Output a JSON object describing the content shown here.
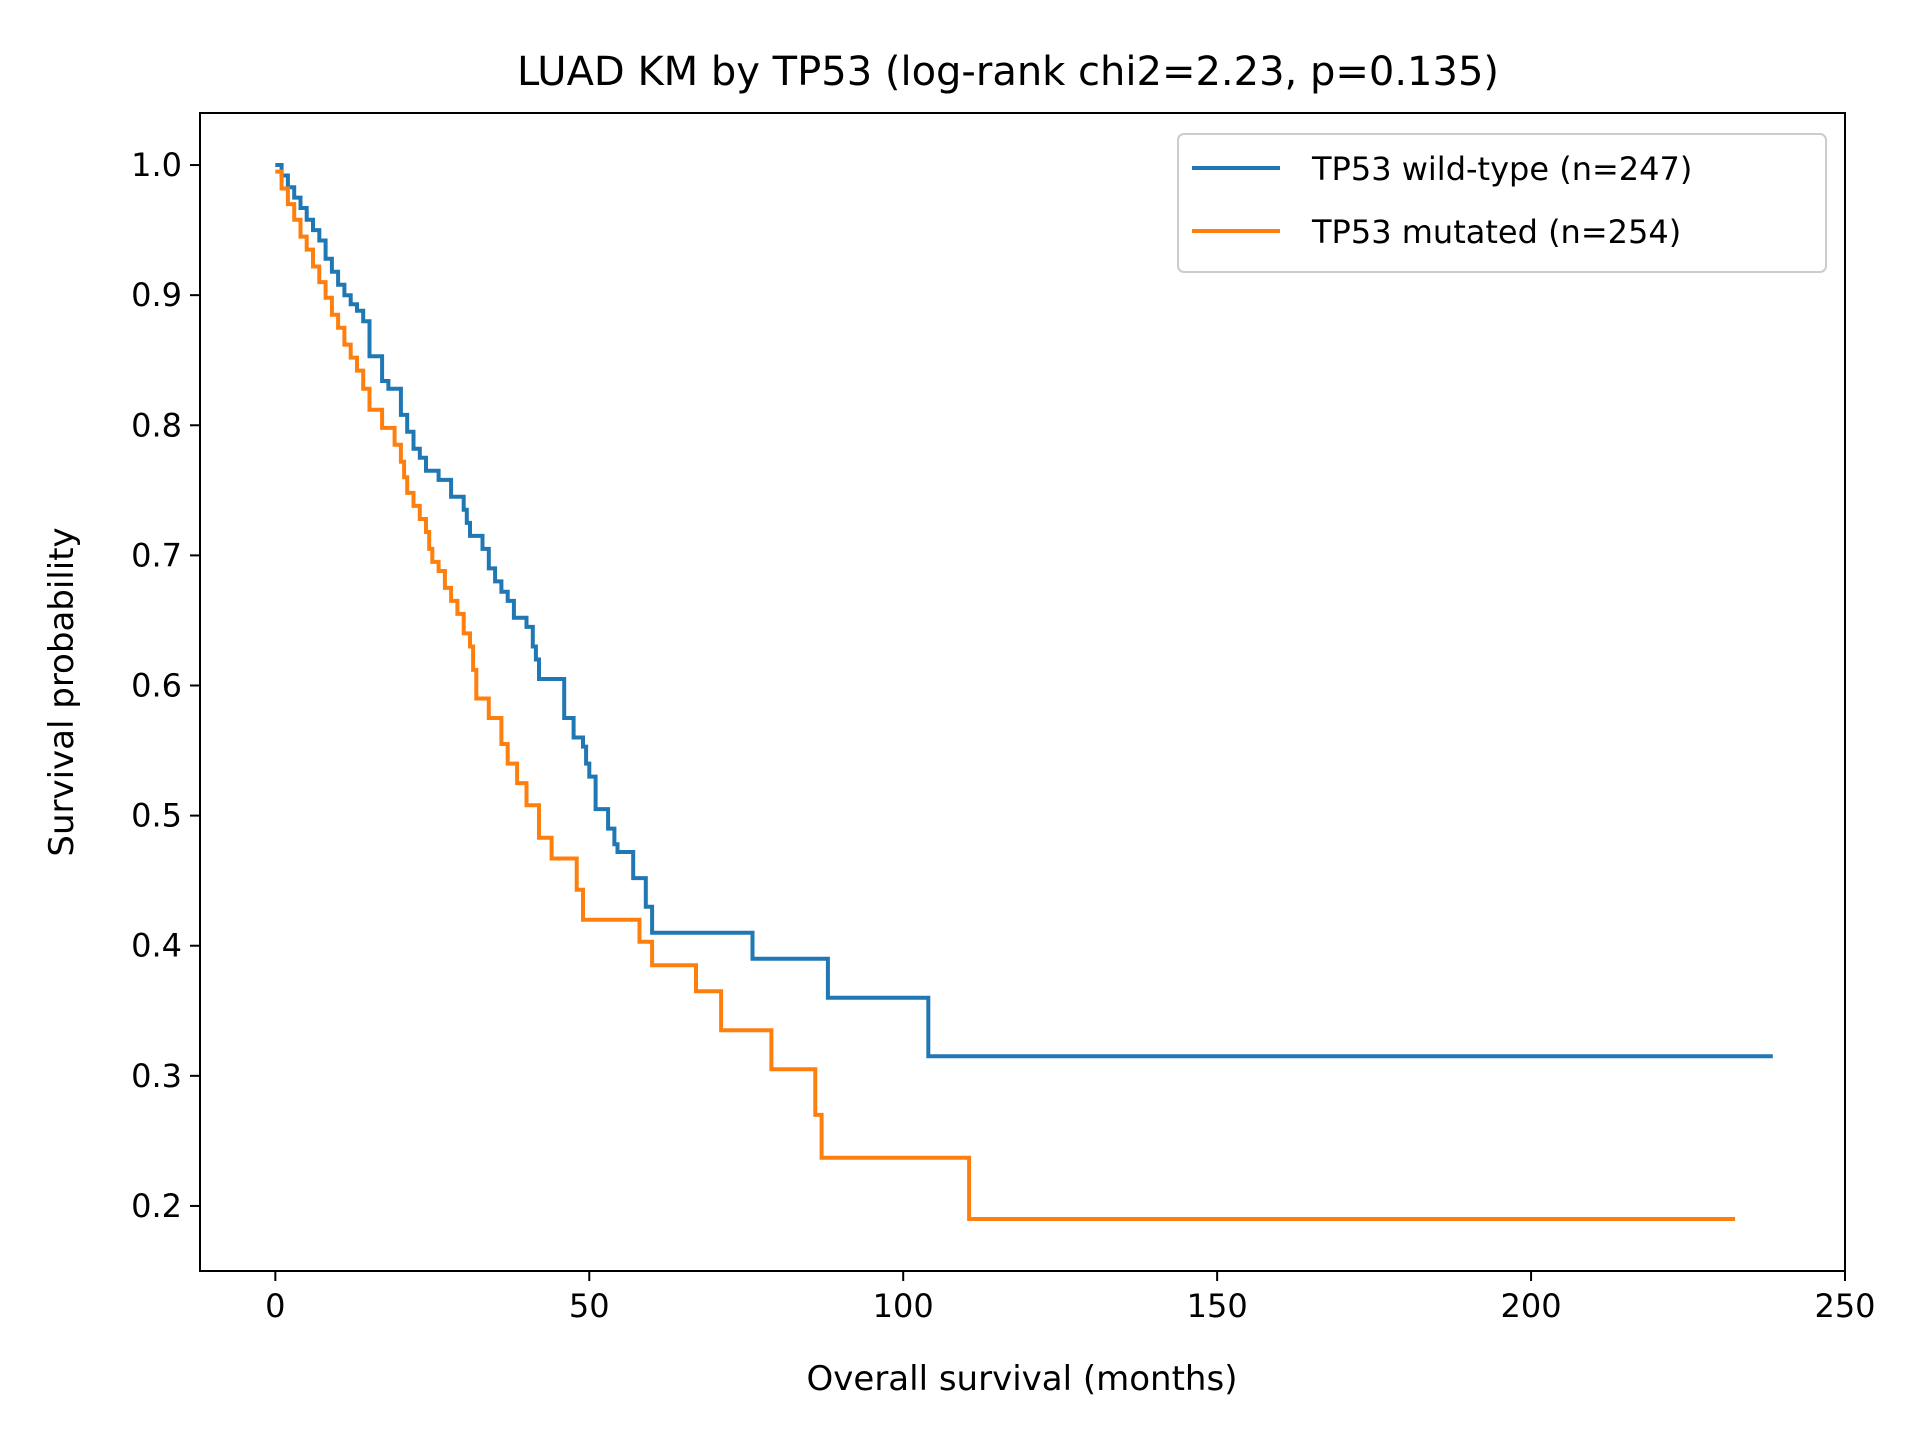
{
  "chart_data": {
    "type": "line",
    "title": "LUAD KM by TP53 (log-rank chi2=2.23, p=0.135)",
    "xlabel": "Overall survival (months)",
    "ylabel": "Survival probability",
    "xlim": [
      -12,
      250
    ],
    "ylim": [
      0.15,
      1.04
    ],
    "xticks": [
      0,
      50,
      100,
      150,
      200,
      250
    ],
    "yticks": [
      0.2,
      0.3,
      0.4,
      0.5,
      0.6,
      0.7,
      0.8,
      0.9,
      1.0
    ],
    "xtick_labels": [
      "0",
      "50",
      "100",
      "150",
      "200",
      "250"
    ],
    "ytick_labels": [
      "0.2",
      "0.3",
      "0.4",
      "0.5",
      "0.6",
      "0.7",
      "0.8",
      "0.9",
      "1.0"
    ],
    "grid": false,
    "legend_position": "top-right",
    "step": "post",
    "series": [
      {
        "name": "TP53 wild-type (n=247)",
        "color": "#1f77b4",
        "x": [
          0,
          1,
          2,
          3,
          4,
          5,
          6,
          7,
          8,
          9,
          10,
          11,
          12,
          13,
          14,
          15,
          17,
          18,
          20,
          21,
          22,
          23,
          24,
          26,
          28,
          30,
          30.5,
          31,
          33,
          34,
          35,
          36,
          37,
          38,
          40,
          41,
          41.5,
          42,
          46,
          47.5,
          49,
          49.5,
          50,
          51,
          53,
          54,
          54.5,
          57,
          59,
          60,
          76,
          88,
          104,
          238.5
        ],
        "y": [
          1.0,
          0.992,
          0.983,
          0.975,
          0.967,
          0.958,
          0.95,
          0.942,
          0.928,
          0.918,
          0.908,
          0.9,
          0.893,
          0.888,
          0.88,
          0.853,
          0.834,
          0.828,
          0.808,
          0.795,
          0.782,
          0.775,
          0.765,
          0.758,
          0.745,
          0.735,
          0.725,
          0.715,
          0.705,
          0.69,
          0.68,
          0.672,
          0.665,
          0.652,
          0.645,
          0.63,
          0.62,
          0.605,
          0.575,
          0.56,
          0.553,
          0.54,
          0.53,
          0.505,
          0.49,
          0.478,
          0.472,
          0.452,
          0.43,
          0.41,
          0.39,
          0.36,
          0.315,
          0.315
        ]
      },
      {
        "name": "TP53 mutated (n=254)",
        "color": "#ff7f0e",
        "x": [
          0,
          1,
          2,
          3,
          4,
          5,
          6,
          7,
          8,
          9,
          10,
          11,
          12,
          13,
          14,
          15,
          17,
          19,
          20,
          20.5,
          21,
          22,
          23,
          24,
          24.5,
          25,
          26,
          27,
          28,
          29,
          30,
          31,
          31.5,
          32,
          34,
          36,
          37,
          38.5,
          40,
          42,
          44,
          48,
          49,
          50,
          58,
          60,
          67,
          71,
          79,
          86,
          87,
          110.5,
          232.5
        ],
        "y": [
          0.995,
          0.982,
          0.97,
          0.958,
          0.945,
          0.935,
          0.922,
          0.91,
          0.898,
          0.885,
          0.875,
          0.862,
          0.852,
          0.842,
          0.828,
          0.812,
          0.798,
          0.785,
          0.772,
          0.76,
          0.748,
          0.738,
          0.728,
          0.718,
          0.705,
          0.695,
          0.688,
          0.675,
          0.665,
          0.655,
          0.64,
          0.63,
          0.612,
          0.59,
          0.575,
          0.555,
          0.54,
          0.525,
          0.508,
          0.483,
          0.467,
          0.443,
          0.42,
          0.42,
          0.403,
          0.385,
          0.365,
          0.335,
          0.305,
          0.27,
          0.237,
          0.19,
          0.19
        ]
      }
    ]
  }
}
